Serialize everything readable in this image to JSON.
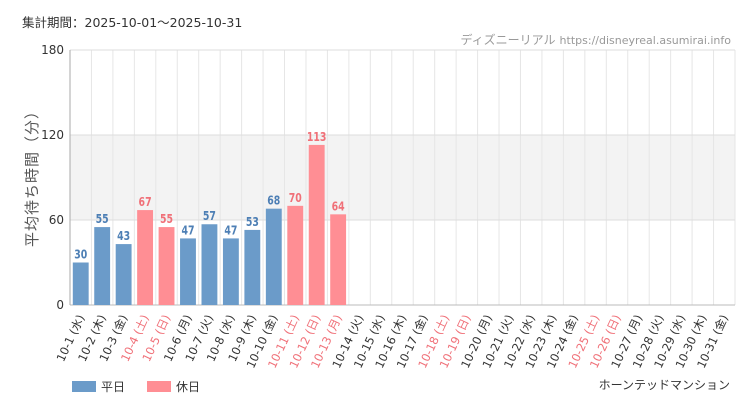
{
  "header": {
    "period": "集計期間：2025-10-01～2025-10-31",
    "source_name": "ディズニーリアル",
    "source_url": "https://disneyreal.asumirai.info"
  },
  "attraction": "ホーンテッドマンション",
  "colors": {
    "weekday": "#6b9bc9",
    "holiday": "#ff8e94",
    "weekday_label": "#4d7fb5",
    "holiday_label": "#f07078",
    "tick_normal": "#333333",
    "tick_holiday": "#f07078",
    "grid": "#e6e6e6",
    "band": "#f3f3f3"
  },
  "chart_data": {
    "type": "bar",
    "ylabel": "平均待ち時間（分）",
    "ylim": [
      0,
      180
    ],
    "yticks": [
      0,
      60,
      120,
      180
    ],
    "shaded_band": [
      60,
      120
    ],
    "legend_position": "bottom-left",
    "categories": [
      "10-1 (水)",
      "10-2 (木)",
      "10-3 (金)",
      "10-4 (土)",
      "10-5 (日)",
      "10-6 (月)",
      "10-7 (火)",
      "10-8 (水)",
      "10-9 (木)",
      "10-10 (金)",
      "10-11 (土)",
      "10-12 (日)",
      "10-13 (月)",
      "10-14 (火)",
      "10-15 (水)",
      "10-16 (木)",
      "10-17 (金)",
      "10-18 (土)",
      "10-19 (日)",
      "10-20 (月)",
      "10-21 (火)",
      "10-22 (水)",
      "10-23 (木)",
      "10-24 (金)",
      "10-25 (土)",
      "10-26 (日)",
      "10-27 (月)",
      "10-28 (火)",
      "10-29 (水)",
      "10-30 (木)",
      "10-31 (金)"
    ],
    "holiday_flags": [
      false,
      false,
      false,
      true,
      true,
      false,
      false,
      false,
      false,
      false,
      true,
      true,
      true,
      false,
      false,
      false,
      false,
      true,
      true,
      false,
      false,
      false,
      false,
      false,
      true,
      true,
      false,
      false,
      false,
      false,
      false
    ],
    "values": [
      30,
      55,
      43,
      67,
      55,
      47,
      57,
      47,
      53,
      68,
      70,
      113,
      64,
      null,
      null,
      null,
      null,
      null,
      null,
      null,
      null,
      null,
      null,
      null,
      null,
      null,
      null,
      null,
      null,
      null,
      null
    ],
    "series": [
      {
        "name": "平日",
        "color": "#6b9bc9"
      },
      {
        "name": "休日",
        "color": "#ff8e94"
      }
    ]
  }
}
